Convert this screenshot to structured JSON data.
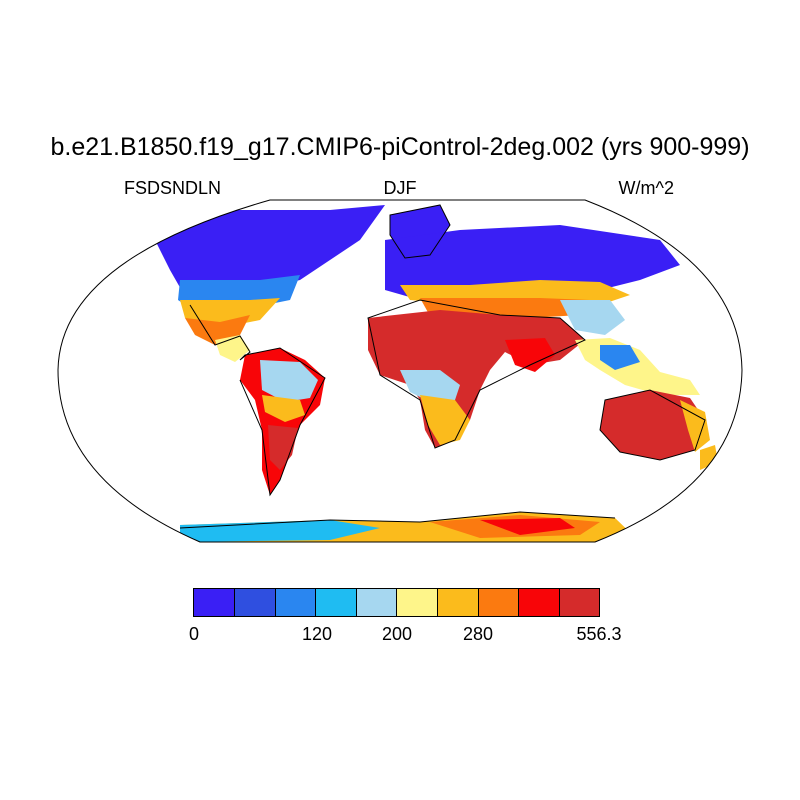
{
  "title": "b.e21.B1850.f19_g17.CMIP6-piControl-2deg.002 (yrs 900-999)",
  "left_string": "FSDSNDLN",
  "center_string": "DJF",
  "right_string": "W/m^2",
  "colorbar": {
    "colors": [
      "#3a1ff5",
      "#2f4fe0",
      "#2a86f0",
      "#1fbcf2",
      "#a6d7f0",
      "#fef58a",
      "#fbbb1c",
      "#fb7a10",
      "#f80508",
      "#d52b2b"
    ],
    "labels": [
      "0",
      "120",
      "200",
      "280",
      "556.3"
    ]
  }
}
